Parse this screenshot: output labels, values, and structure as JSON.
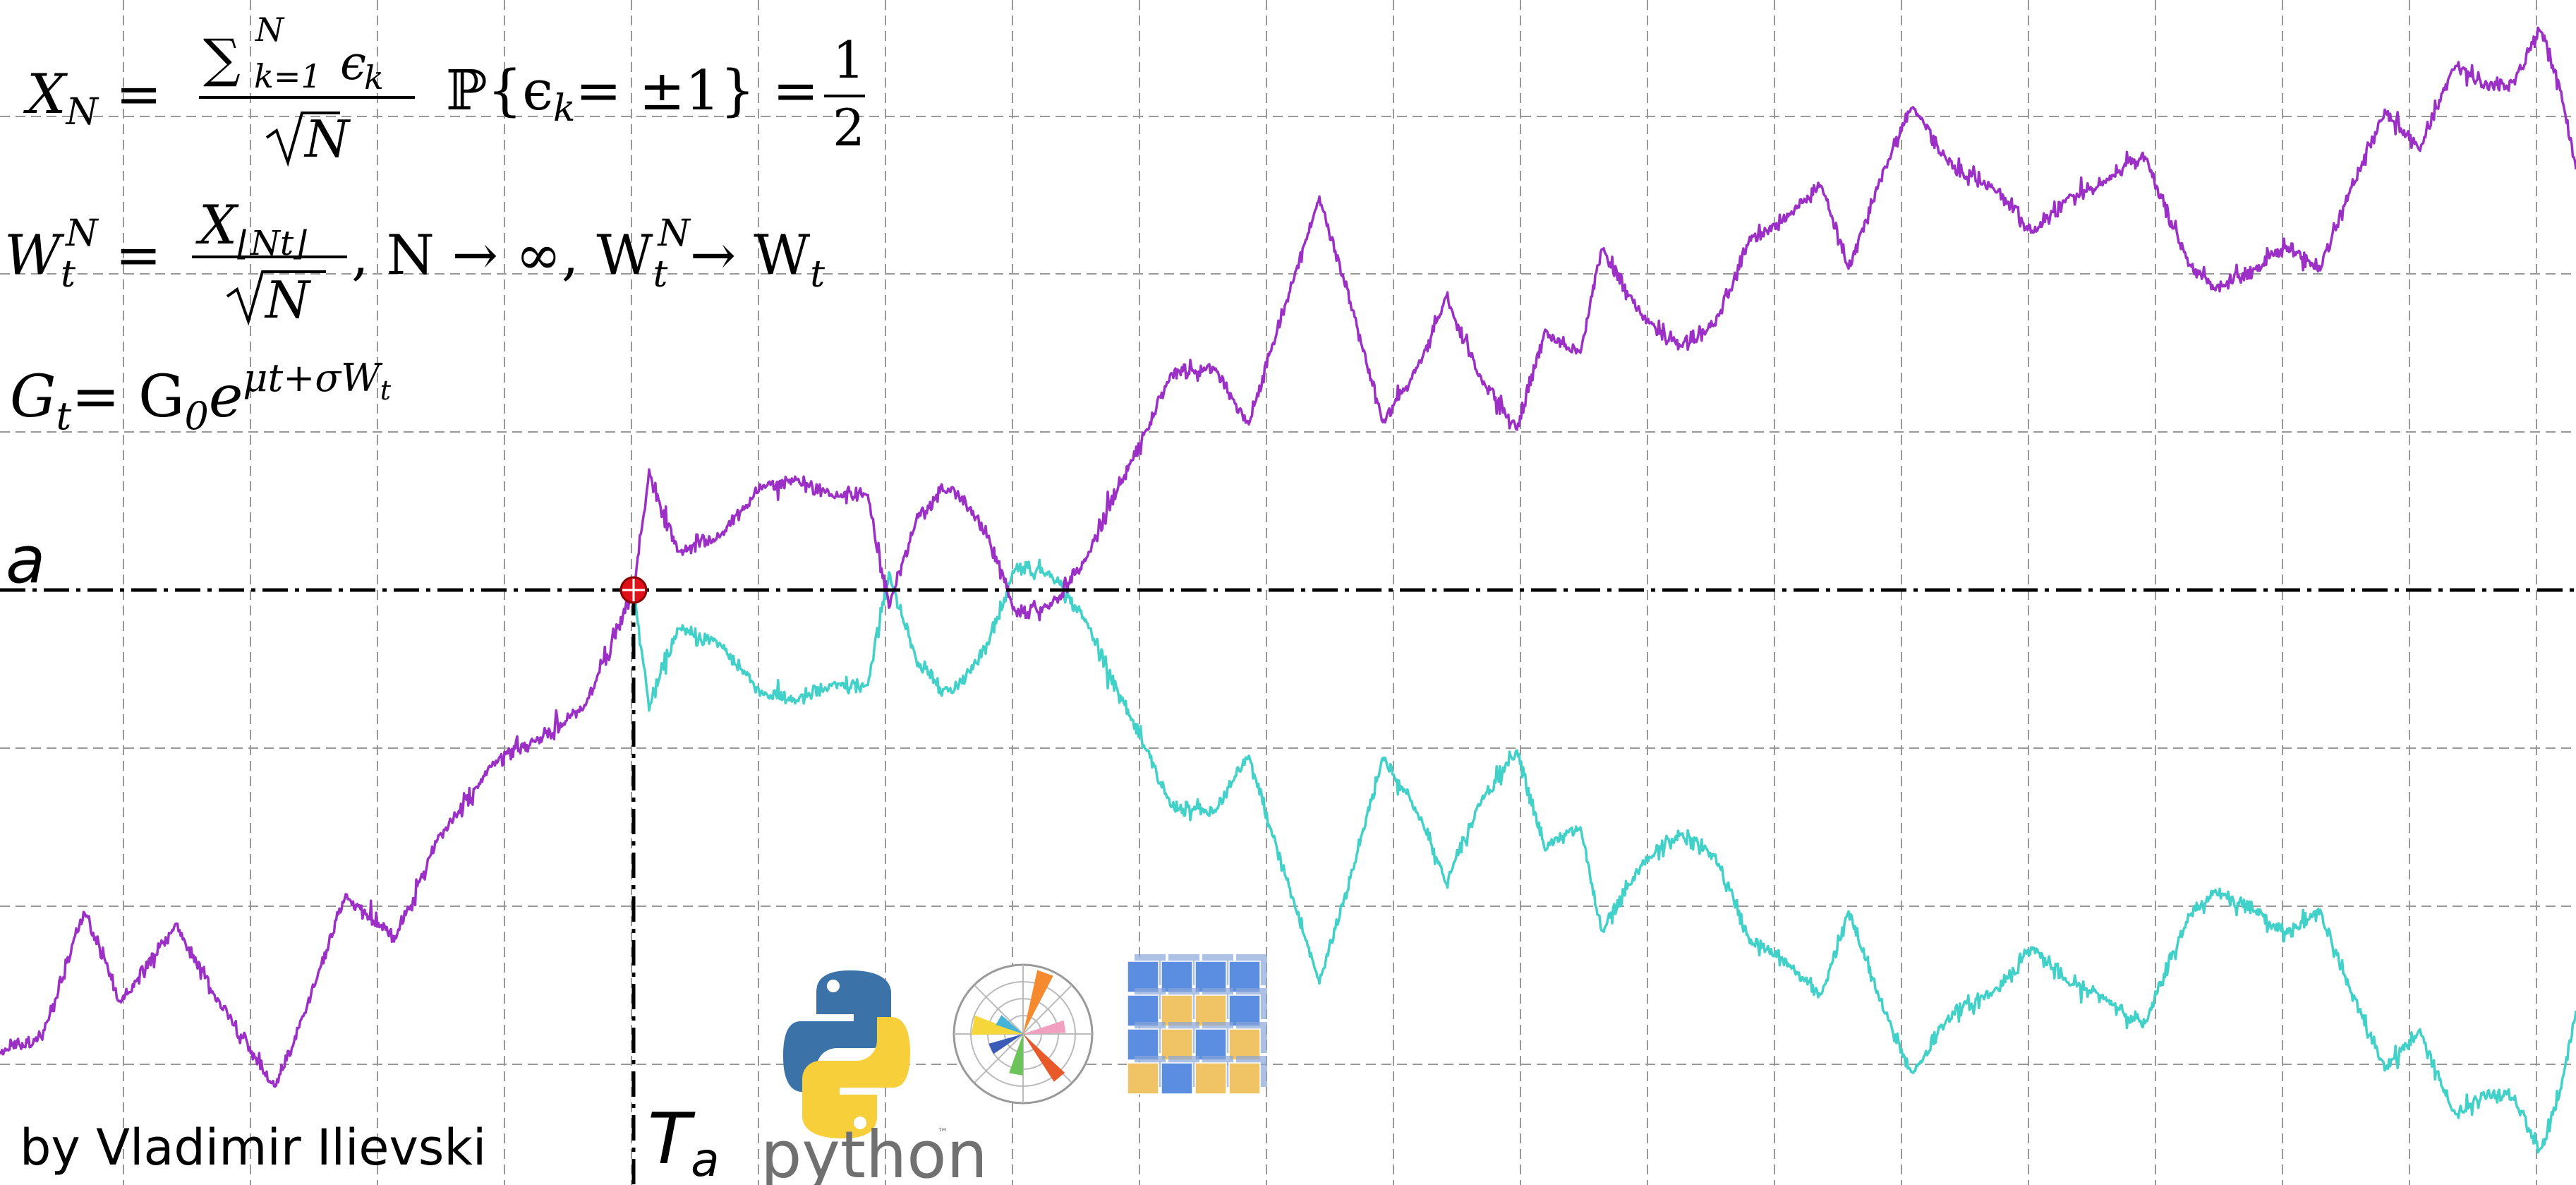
{
  "formulas": {
    "line1_lhs": "X",
    "line1_lhs_sub": "N",
    "line1_sum": "∑",
    "line1_sum_upper": "N",
    "line1_sum_lower": "k=1",
    "line1_eps": "ϵ",
    "line1_eps_sub": "k",
    "line1_sqrtN": "N",
    "line1_prob": "ℙ{ϵ",
    "line1_prob_sub": "k",
    "line1_prob_rhs": "= ±1} =",
    "line1_half_num": "1",
    "line1_half_den": "2",
    "line2_W": "W",
    "line2_W_sub": "t",
    "line2_W_sup": "N",
    "line2_num": "X",
    "line2_num_sub": "⌊Nt⌋",
    "line2_den": "N",
    "line2_tail": ", N → ∞, W",
    "line2_tail_sub": "t",
    "line2_tail_sup": "N",
    "line2_arrow": "→ W",
    "line2_end_sub": "t",
    "line3_G": "G",
    "line3_G_sub": "t",
    "line3_eq": "= G",
    "line3_G0_sub": "0",
    "line3_e": "e",
    "line3_exp": "μt+σW",
    "line3_exp_sub": "t"
  },
  "labels": {
    "level": "a",
    "hit_time": "T",
    "hit_time_sub": "a",
    "python_word": "python",
    "tm": "™",
    "author": "by Vladimir Ilievski"
  },
  "logos": {
    "python": "python-logo",
    "matplotlib": "matplotlib-logo",
    "numpy": "numpy-logo"
  },
  "colors": {
    "path": "#9b2fc6",
    "reflected": "#41d1c8",
    "hit_marker": "#e0101a",
    "grid": "#999999",
    "level_line": "#000000"
  }
}
